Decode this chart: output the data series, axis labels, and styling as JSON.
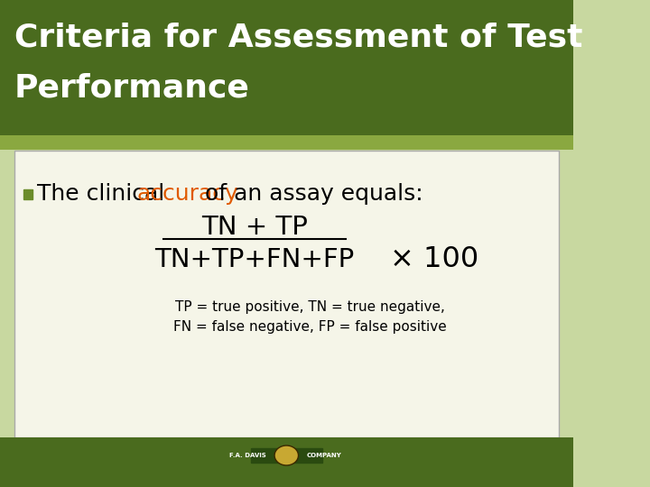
{
  "title_line1": "Criteria for Assessment of Test",
  "title_line2": "Performance",
  "title_bg_color": "#4a6b1e",
  "title_text_color": "#ffffff",
  "slide_bg_color": "#c8d8a0",
  "content_bg_color": "#f5f5e8",
  "content_border_color": "#aaaaaa",
  "bullet_color": "#6b8c2a",
  "text_color": "#000000",
  "accuracy_color": "#e05a00",
  "bullet_text": "The clinical ",
  "accuracy_word": "accuracy",
  "after_accuracy": " of an assay equals:",
  "numerator": "TN + TP",
  "denominator": "TN+TP+FN+FP",
  "times100": "× 100",
  "footnote_line1": "TP = true positive, TN = true negative,",
  "footnote_line2": "FN = false negative, FP = false positive",
  "bottom_bar_color": "#4a6b1e",
  "strip_color": "#8aa840",
  "logo_face_color": "#c8a832",
  "logo_edge_color": "#3a2800",
  "logo_text_color": "#ffffff"
}
